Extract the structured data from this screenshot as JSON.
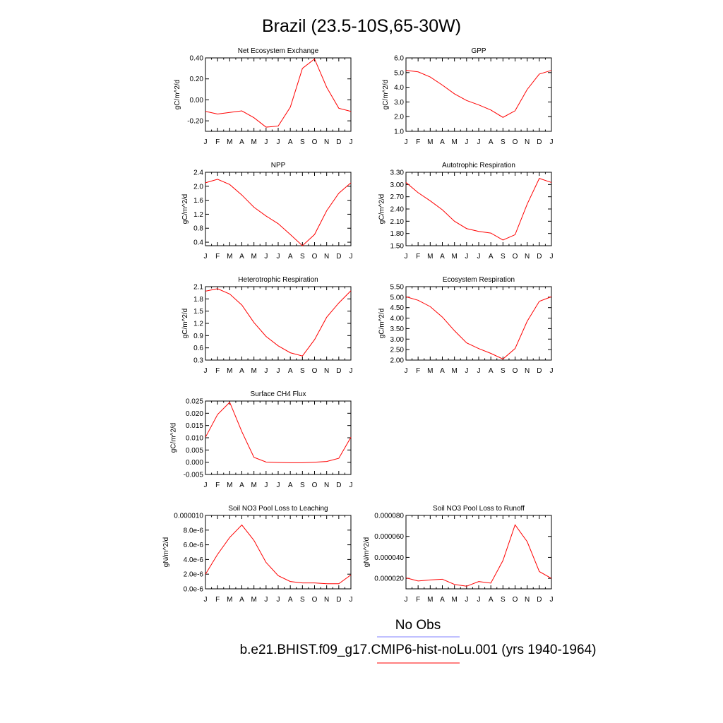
{
  "figure": {
    "title": "Brazil (23.5-10S,65-30W)"
  },
  "legend": {
    "obs_label": "No Obs",
    "obs_color": "#8080ff",
    "model_label": "b.e21.BHIST.f09_g17.CMIP6-hist-noLu.001 (yrs 1940-1964)",
    "model_color": "#ff0000"
  },
  "chart_data": [
    {
      "type": "line",
      "title": "Net Ecosystem Exchange",
      "ylabel": "gC/m^2/d",
      "categories": [
        "J",
        "F",
        "M",
        "A",
        "M",
        "J",
        "J",
        "A",
        "S",
        "O",
        "N",
        "D",
        "J"
      ],
      "ylim": [
        -0.3,
        0.4
      ],
      "yticks": [
        -0.2,
        0.0,
        0.2,
        0.4
      ],
      "ytick_labels": [
        "-0.20",
        "0.00",
        "0.20",
        "0.40"
      ],
      "series": [
        {
          "values": [
            -0.11,
            -0.135,
            -0.12,
            -0.105,
            -0.17,
            -0.26,
            -0.25,
            -0.07,
            0.3,
            0.39,
            0.12,
            -0.08,
            -0.11
          ]
        }
      ]
    },
    {
      "type": "line",
      "title": "GPP",
      "ylabel": "gC/m^2/d",
      "categories": [
        "J",
        "F",
        "M",
        "A",
        "M",
        "J",
        "J",
        "A",
        "S",
        "O",
        "N",
        "D",
        "J"
      ],
      "ylim": [
        1.0,
        6.0
      ],
      "yticks": [
        1,
        2,
        3,
        4,
        5,
        6
      ],
      "ytick_labels": [
        "1.0",
        "2.0",
        "3.0",
        "4.0",
        "5.0",
        "6.0"
      ],
      "series": [
        {
          "values": [
            5.15,
            5.05,
            4.7,
            4.15,
            3.55,
            3.1,
            2.8,
            2.45,
            1.95,
            2.4,
            3.85,
            4.9,
            5.15
          ]
        }
      ]
    },
    {
      "type": "line",
      "title": "NPP",
      "ylabel": "gC/m^2/d",
      "categories": [
        "J",
        "F",
        "M",
        "A",
        "M",
        "J",
        "J",
        "A",
        "S",
        "O",
        "N",
        "D",
        "J"
      ],
      "ylim": [
        0.3,
        2.4
      ],
      "yticks": [
        0.4,
        0.8,
        1.2,
        1.6,
        2.0,
        2.4
      ],
      "ytick_labels": [
        "0.4",
        "0.8",
        "1.2",
        "1.6",
        "2.0",
        "2.4"
      ],
      "series": [
        {
          "values": [
            2.1,
            2.2,
            2.05,
            1.75,
            1.4,
            1.15,
            0.93,
            0.62,
            0.3,
            0.62,
            1.3,
            1.8,
            2.1
          ]
        }
      ]
    },
    {
      "type": "line",
      "title": "Autotrophic Respiration",
      "ylabel": "gC/m^2/d",
      "categories": [
        "J",
        "F",
        "M",
        "A",
        "M",
        "J",
        "J",
        "A",
        "S",
        "O",
        "N",
        "D",
        "J"
      ],
      "ylim": [
        1.5,
        3.3
      ],
      "yticks": [
        1.5,
        1.8,
        2.1,
        2.4,
        2.7,
        3.0,
        3.3
      ],
      "ytick_labels": [
        "1.50",
        "1.80",
        "2.10",
        "2.40",
        "2.70",
        "3.00",
        "3.30"
      ],
      "series": [
        {
          "values": [
            3.05,
            2.8,
            2.6,
            2.38,
            2.1,
            1.92,
            1.85,
            1.81,
            1.64,
            1.77,
            2.52,
            3.15,
            3.05
          ]
        }
      ]
    },
    {
      "type": "line",
      "title": "Heterotrophic Respiration",
      "ylabel": "gC/m^2/d",
      "categories": [
        "J",
        "F",
        "M",
        "A",
        "M",
        "J",
        "J",
        "A",
        "S",
        "O",
        "N",
        "D",
        "J"
      ],
      "ylim": [
        0.3,
        2.1
      ],
      "yticks": [
        0.3,
        0.6,
        0.9,
        1.2,
        1.5,
        1.8,
        2.1
      ],
      "ytick_labels": [
        "0.3",
        "0.6",
        "0.9",
        "1.2",
        "1.5",
        "1.8",
        "2.1"
      ],
      "series": [
        {
          "values": [
            1.99,
            2.05,
            1.92,
            1.65,
            1.22,
            0.88,
            0.65,
            0.48,
            0.4,
            0.8,
            1.35,
            1.7,
            2.0
          ]
        }
      ]
    },
    {
      "type": "line",
      "title": "Ecosystem Respiration",
      "ylabel": "gC/m^2/d",
      "categories": [
        "J",
        "F",
        "M",
        "A",
        "M",
        "J",
        "J",
        "A",
        "S",
        "O",
        "N",
        "D",
        "J"
      ],
      "ylim": [
        2.0,
        5.5
      ],
      "yticks": [
        2.0,
        2.5,
        3.0,
        3.5,
        4.0,
        4.5,
        5.0,
        5.5
      ],
      "ytick_labels": [
        "2.00",
        "2.50",
        "3.00",
        "3.50",
        "4.00",
        "4.50",
        "5.00",
        "5.50"
      ],
      "series": [
        {
          "values": [
            5.02,
            4.85,
            4.55,
            4.05,
            3.4,
            2.82,
            2.55,
            2.32,
            2.05,
            2.55,
            3.85,
            4.8,
            5.02
          ]
        }
      ]
    },
    {
      "type": "line",
      "title": "Surface CH4 Flux",
      "ylabel": "gC/m^2/d",
      "categories": [
        "J",
        "F",
        "M",
        "A",
        "M",
        "J",
        "J",
        "A",
        "S",
        "O",
        "N",
        "D",
        "J"
      ],
      "ylim": [
        -0.005,
        0.025
      ],
      "yticks": [
        -0.005,
        0.0,
        0.005,
        0.01,
        0.015,
        0.02,
        0.025
      ],
      "ytick_labels": [
        "-0.005",
        "0.000",
        "0.005",
        "0.010",
        "0.015",
        "0.020",
        "0.025"
      ],
      "series": [
        {
          "values": [
            0.0102,
            0.0195,
            0.0245,
            0.0125,
            0.002,
            0.0001,
            -0.0001,
            -0.0002,
            -0.0002,
            0.0,
            0.0003,
            0.0016,
            0.0102
          ]
        }
      ]
    },
    {
      "type": "line",
      "title": "Soil NO3 Pool Loss to Leaching",
      "ylabel": "gN/m^2/d",
      "categories": [
        "J",
        "F",
        "M",
        "A",
        "M",
        "J",
        "J",
        "A",
        "S",
        "O",
        "N",
        "D",
        "J"
      ],
      "ylim": [
        0.0,
        1e-05
      ],
      "yticks": [
        0.0,
        2e-06,
        4e-06,
        6e-06,
        8e-06,
        1e-05
      ],
      "ytick_labels": [
        "0.0e-6",
        "2.0e-6",
        "4.0e-6",
        "6.0e-6",
        "8.0e-6",
        "0.000010"
      ],
      "series": [
        {
          "values": [
            2e-06,
            4.7e-06,
            7e-06,
            8.7e-06,
            6.6e-06,
            3.6e-06,
            1.8e-06,
            1e-06,
            8e-07,
            8e-07,
            7e-07,
            7e-07,
            1.9e-06
          ]
        }
      ]
    },
    {
      "type": "line",
      "title": "Soil NO3 Pool Loss to Runoff",
      "ylabel": "gN/m^2/d",
      "categories": [
        "J",
        "F",
        "M",
        "A",
        "M",
        "J",
        "J",
        "A",
        "S",
        "O",
        "N",
        "D",
        "J"
      ],
      "ylim": [
        1e-05,
        8e-05
      ],
      "yticks": [
        2e-05,
        4e-05,
        6e-05,
        8e-05
      ],
      "ytick_labels": [
        "0.000020",
        "0.000040",
        "0.000060",
        "0.000080"
      ],
      "series": [
        {
          "values": [
            2.05e-05,
            1.75e-05,
            1.85e-05,
            1.92e-05,
            1.42e-05,
            1.25e-05,
            1.7e-05,
            1.55e-05,
            3.7e-05,
            7.1e-05,
            5.5e-05,
            2.65e-05,
            2e-05
          ]
        }
      ]
    }
  ]
}
